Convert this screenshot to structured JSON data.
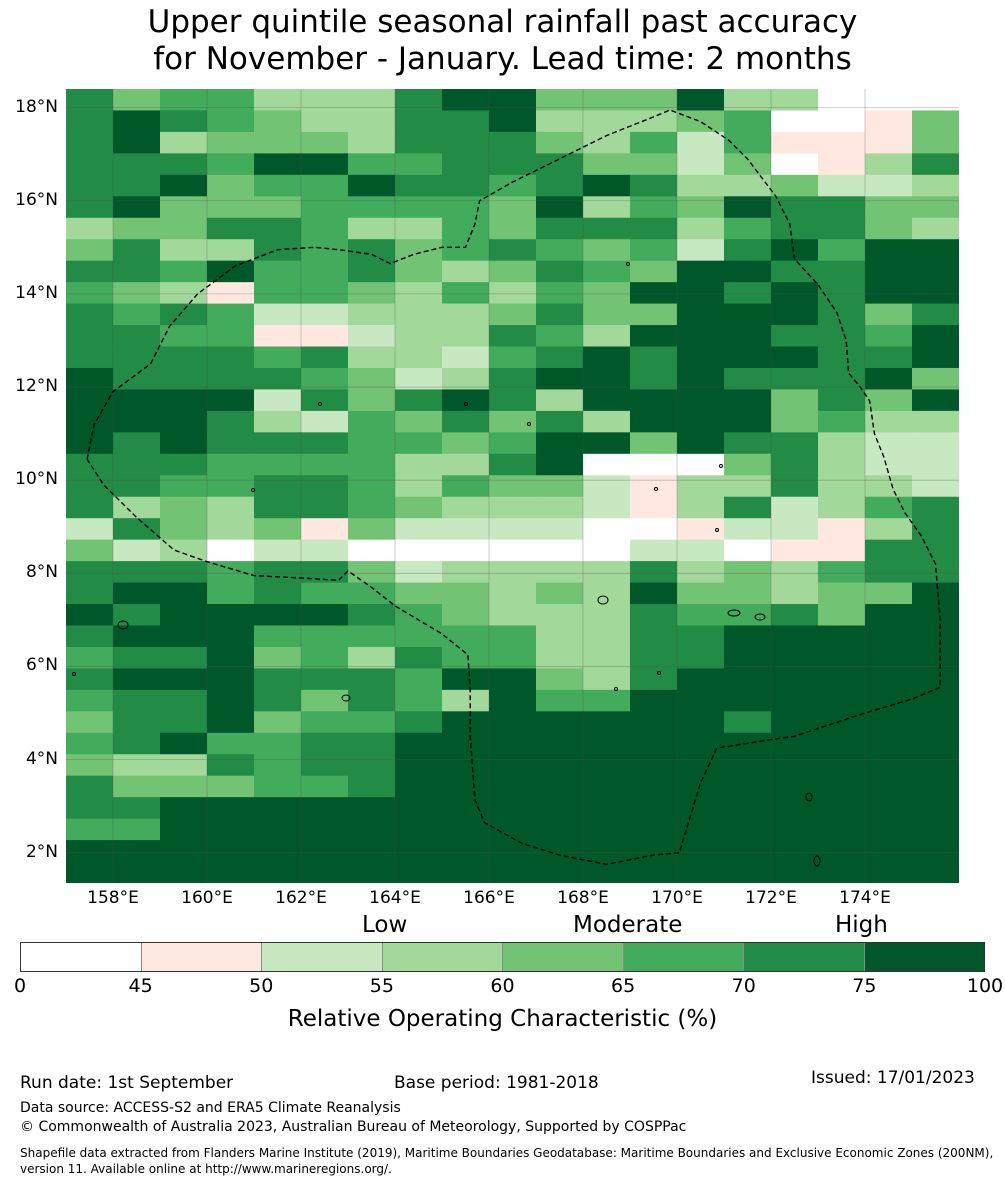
{
  "title_line1": "Upper quintile seasonal rainfall past accuracy",
  "title_line2": "for November - January. Lead time: 2 months",
  "map": {
    "lon_range": [
      157,
      176
    ],
    "lat_range": [
      1.35,
      18.4
    ],
    "lat_ticks": [
      "18°N",
      "16°N",
      "14°N",
      "12°N",
      "10°N",
      "8°N",
      "6°N",
      "4°N",
      "2°N"
    ],
    "lat_values": [
      18,
      16,
      14,
      12,
      10,
      8,
      6,
      4,
      2
    ],
    "lon_ticks": [
      "158°E",
      "160°E",
      "162°E",
      "164°E",
      "166°E",
      "168°E",
      "170°E",
      "172°E",
      "174°E"
    ],
    "lon_values": [
      158,
      160,
      162,
      164,
      166,
      168,
      170,
      172,
      174
    ],
    "grid": [
      "6455333677444733000",
      "6765433667333450014",
      "6734443666435251114",
      "6665775566644240136",
      "6674557665676334223",
      "6744455554735476644",
      "3446653354666356643",
      "4633656456545267577",
      "6657556434654776677",
      "5431554353547767677",
      "6565223334644777646",
      "6655112336537776657",
      "6666563325676777667",
      "7666654236776766674",
      "7777264676377774647",
      "7776325464637774533",
      "7676665545774766322",
      "6665555336700046322",
      "6655665354421336332",
      "6343665433321362356",
      "2643414222200122136",
      "4230220000002201166",
      "6665664233336343566",
      "6775655443437443447",
      "7677776543336556477",
      "6777555555336677777",
      "5667453655336677777",
      "6777666577436777777",
      "5667646537557777777",
      "4667455677777767777",
      "5675566777777777777",
      "4336566777777777777",
      "6444556777777777777",
      "6677777777777777777",
      "5577777777777777777",
      "7777777777777777777",
      "7777777777777777777"
    ],
    "eez_boundary": [
      [
        157.45,
        10.45
      ],
      [
        157.6,
        11.2
      ],
      [
        158.0,
        11.9
      ],
      [
        158.8,
        12.5
      ],
      [
        159.2,
        13.3
      ],
      [
        159.8,
        14.0
      ],
      [
        160.6,
        14.6
      ],
      [
        161.5,
        14.95
      ],
      [
        162.3,
        15.0
      ],
      [
        162.8,
        14.95
      ],
      [
        163.5,
        14.85
      ],
      [
        163.9,
        14.65
      ],
      [
        164.4,
        14.85
      ],
      [
        165.0,
        15.0
      ],
      [
        165.5,
        15.0
      ],
      [
        165.7,
        15.5
      ],
      [
        165.8,
        16.0
      ],
      [
        166.5,
        16.4
      ],
      [
        167.5,
        16.9
      ],
      [
        168.5,
        17.4
      ],
      [
        169.5,
        17.8
      ],
      [
        169.85,
        17.95
      ],
      [
        170.5,
        17.7
      ],
      [
        171.1,
        17.3
      ],
      [
        171.5,
        16.9
      ],
      [
        172.1,
        16.1
      ],
      [
        172.4,
        15.5
      ],
      [
        172.5,
        14.75
      ],
      [
        173.0,
        14.2
      ],
      [
        173.4,
        13.6
      ],
      [
        173.6,
        13.0
      ],
      [
        173.65,
        12.3
      ],
      [
        173.9,
        12.0
      ],
      [
        174.1,
        11.7
      ],
      [
        174.2,
        11.0
      ],
      [
        174.4,
        10.5
      ],
      [
        174.6,
        9.8
      ],
      [
        174.85,
        9.3
      ],
      [
        175.2,
        8.8
      ],
      [
        175.5,
        8.2
      ],
      [
        175.6,
        7.0
      ],
      [
        175.6,
        5.55
      ],
      [
        175.0,
        5.3
      ],
      [
        174.0,
        5.0
      ],
      [
        173.1,
        4.7
      ],
      [
        172.5,
        4.5
      ],
      [
        171.8,
        4.4
      ],
      [
        171.2,
        4.3
      ],
      [
        170.85,
        4.25
      ],
      [
        170.5,
        3.5
      ],
      [
        170.2,
        2.5
      ],
      [
        170.05,
        2.0
      ],
      [
        169.5,
        1.95
      ],
      [
        168.5,
        1.75
      ],
      [
        167.5,
        1.95
      ],
      [
        166.7,
        2.2
      ],
      [
        165.9,
        2.65
      ],
      [
        165.7,
        3.15
      ],
      [
        165.6,
        4.5
      ],
      [
        165.6,
        5.5
      ],
      [
        165.55,
        6.25
      ],
      [
        165.0,
        6.7
      ],
      [
        164.0,
        7.3
      ],
      [
        163.5,
        7.7
      ],
      [
        163.0,
        8.05
      ],
      [
        162.8,
        7.85
      ],
      [
        162.0,
        7.9
      ],
      [
        161.0,
        7.95
      ],
      [
        160.0,
        8.25
      ],
      [
        159.3,
        8.5
      ],
      [
        158.5,
        9.2
      ],
      [
        157.8,
        9.9
      ],
      [
        157.45,
        10.45
      ]
    ]
  },
  "category_labels": {
    "low": "Low",
    "moderate": "Moderate",
    "high": "High"
  },
  "colorbar": {
    "colors": [
      "#ffffff",
      "#fee8df",
      "#c8e8c1",
      "#a2d899",
      "#73c375",
      "#42ab5c",
      "#228b45",
      "#00582a"
    ],
    "ticks": [
      "0",
      "45",
      "50",
      "55",
      "60",
      "65",
      "70",
      "75",
      "100"
    ],
    "title": "Relative Operating Characteristic (%)"
  },
  "footer": {
    "run_date": "Run date: 1st September",
    "base_period": "Base period: 1981-2018",
    "issued": "Issued: 17/01/2023",
    "data_source": "Data source: ACCESS-S2 and ERA5 Climate Reanalysis",
    "copyright": "© Commonwealth of Australia 2023, Australian Bureau of Meteorology, Supported by COSPPac",
    "shapefile": "Shapefile data extracted from Flanders Marine Institute (2019), Maritime Boundaries Geodatabase: Maritime Boundaries and Exclusive Economic Zones (200NM), version 11. Available online at http://www.marineregions.org/."
  }
}
